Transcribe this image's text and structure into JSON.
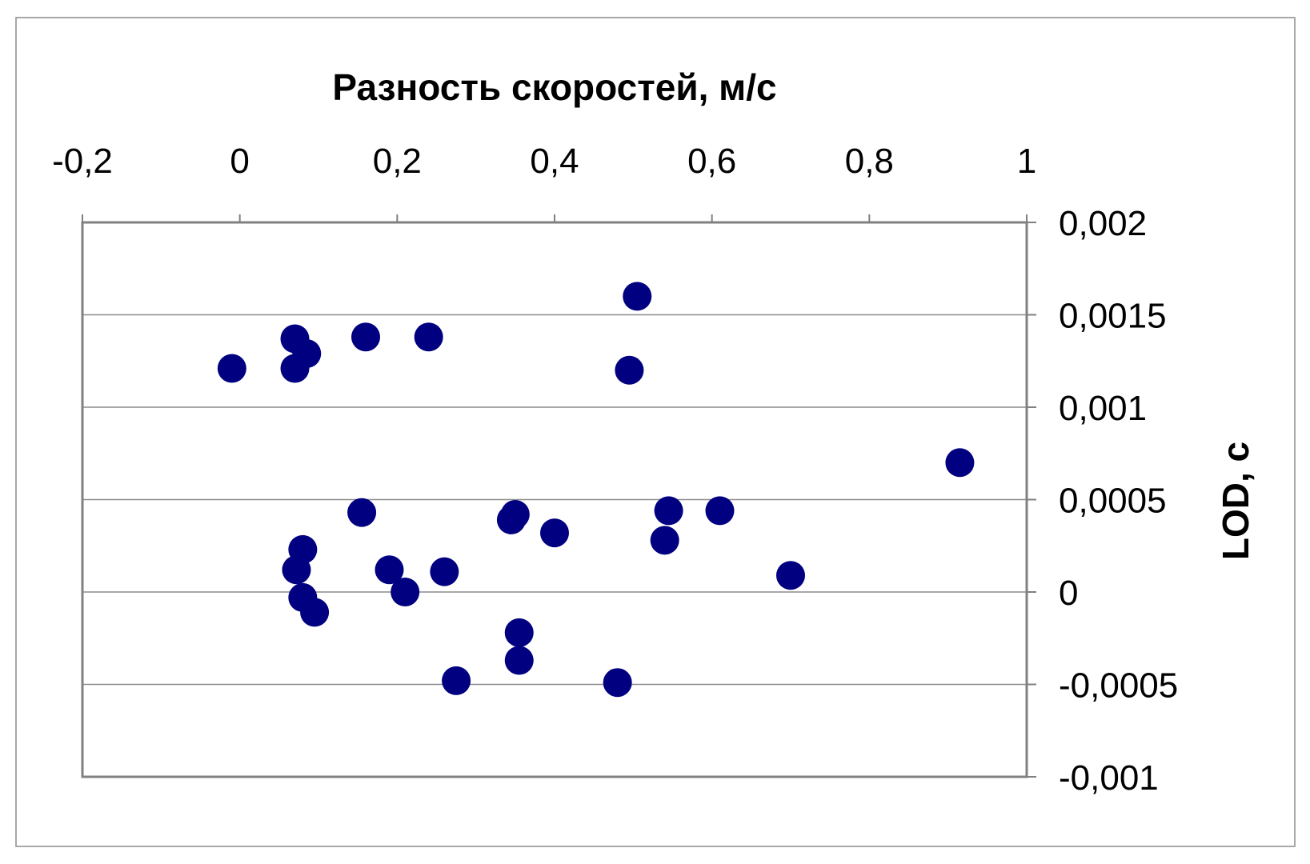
{
  "chart_data": {
    "type": "scatter",
    "xlabel": "Разность скоростей, м/с",
    "ylabel": "LOD, с",
    "xlim": [
      -0.2,
      1
    ],
    "ylim": [
      -0.001,
      0.002
    ],
    "x_axis_position": "top",
    "y_axis_position": "right",
    "grid": "horizontal",
    "point_color": "#000080",
    "x_ticks": [
      {
        "value": -0.2,
        "label": "-0,2"
      },
      {
        "value": 0,
        "label": "0"
      },
      {
        "value": 0.2,
        "label": "0,2"
      },
      {
        "value": 0.4,
        "label": "0,4"
      },
      {
        "value": 0.6,
        "label": "0,6"
      },
      {
        "value": 0.8,
        "label": "0,8"
      },
      {
        "value": 1,
        "label": "1"
      }
    ],
    "y_ticks": [
      {
        "value": 0.002,
        "label": "0,002"
      },
      {
        "value": 0.0015,
        "label": "0,0015"
      },
      {
        "value": 0.001,
        "label": "0,001"
      },
      {
        "value": 0.0005,
        "label": "0,0005"
      },
      {
        "value": 0,
        "label": "0"
      },
      {
        "value": -0.0005,
        "label": "-0,0005"
      },
      {
        "value": -0.001,
        "label": "-0,001"
      }
    ],
    "points": [
      {
        "x": -0.01,
        "y": 0.00121
      },
      {
        "x": 0.07,
        "y": 0.00137
      },
      {
        "x": 0.085,
        "y": 0.00129
      },
      {
        "x": 0.07,
        "y": 0.00121
      },
      {
        "x": 0.16,
        "y": 0.00138
      },
      {
        "x": 0.24,
        "y": 0.00138
      },
      {
        "x": 0.505,
        "y": 0.0016
      },
      {
        "x": 0.495,
        "y": 0.0012
      },
      {
        "x": 0.915,
        "y": 0.0007
      },
      {
        "x": 0.155,
        "y": 0.00043
      },
      {
        "x": 0.35,
        "y": 0.00042
      },
      {
        "x": 0.345,
        "y": 0.00039
      },
      {
        "x": 0.4,
        "y": 0.00032
      },
      {
        "x": 0.545,
        "y": 0.00044
      },
      {
        "x": 0.61,
        "y": 0.00044
      },
      {
        "x": 0.54,
        "y": 0.00028
      },
      {
        "x": 0.08,
        "y": 0.00023
      },
      {
        "x": 0.072,
        "y": 0.00012
      },
      {
        "x": 0.19,
        "y": 0.00012
      },
      {
        "x": 0.26,
        "y": 0.00011
      },
      {
        "x": 0.21,
        "y": 0.0
      },
      {
        "x": 0.7,
        "y": 9e-05
      },
      {
        "x": 0.08,
        "y": -3e-05
      },
      {
        "x": 0.095,
        "y": -0.00011
      },
      {
        "x": 0.355,
        "y": -0.00022
      },
      {
        "x": 0.355,
        "y": -0.00037
      },
      {
        "x": 0.275,
        "y": -0.00048
      },
      {
        "x": 0.48,
        "y": -0.00049
      }
    ]
  }
}
